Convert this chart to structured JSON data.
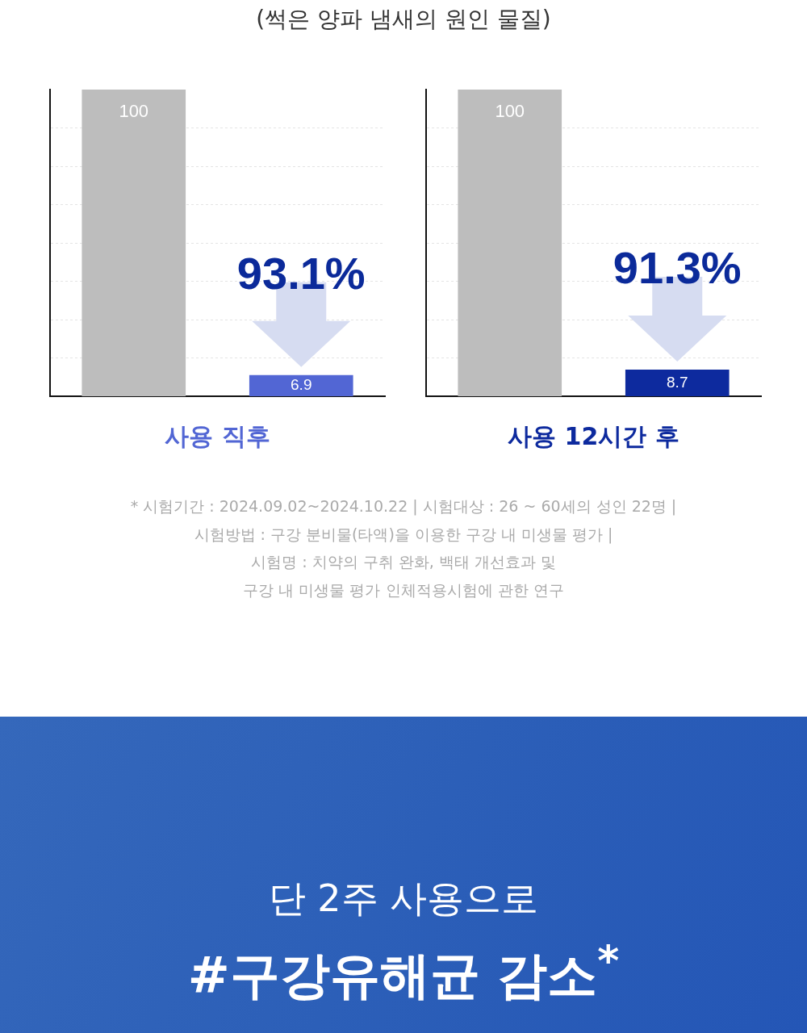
{
  "chart_data": [
    {
      "type": "bar",
      "title": "(썩은 양파 냄새의 원인 물질)",
      "xlabel": "사용 직후",
      "categories": [
        null,
        null
      ],
      "values": [
        100,
        6.9
      ],
      "colors": [
        "#bdbdbd",
        "#5266d4"
      ],
      "ylim": [
        0,
        100
      ],
      "yticks": [
        {
          "value": 12.5,
          "label": null
        },
        {
          "value": 25,
          "label": null
        },
        {
          "value": 37.5,
          "label": null
        },
        {
          "value": 50,
          "label": null
        },
        {
          "value": 62.5,
          "label": null
        },
        {
          "value": 75,
          "label": null
        },
        {
          "value": 87.5,
          "label": null
        }
      ],
      "grid": "y",
      "tick_labels": false,
      "data_labels": true,
      "annotations": [
        "93.1%"
      ]
    },
    {
      "type": "bar",
      "xlabel": "사용 12시간 후",
      "categories": [
        null,
        null
      ],
      "values": [
        100,
        8.7
      ],
      "colors": [
        "#bdbdbd",
        "#0d2a9e"
      ],
      "ylim": [
        0,
        100
      ],
      "yticks": [
        {
          "value": 12.5,
          "label": null
        },
        {
          "value": 25,
          "label": null
        },
        {
          "value": 37.5,
          "label": null
        },
        {
          "value": 50,
          "label": null
        },
        {
          "value": 62.5,
          "label": null
        },
        {
          "value": 75,
          "label": null
        },
        {
          "value": 87.5,
          "label": null
        }
      ],
      "grid": "y",
      "tick_labels": false,
      "data_labels": true,
      "annotations": [
        "91.3%"
      ]
    },
    {
      "type": "other",
      "annotations": [
        "* 시험기간 : 2024.09.02~2024.10.22 | 시험대상 : 26 ~ 60세의 성인 22명 |",
        "시험방법 : 구강 분비물(타액)을 이용한 구강 내 미생물 평가 |",
        "시험명 : 치약의 구취 완화, 백태 개선효과 및",
        "구강 내 미생물 평가 인체적용시험에 관한 연구"
      ]
    },
    {
      "type": "other",
      "title": "단 2주 사용으로",
      "subtitle": "#구강유해균 감소$^{*}$"
    }
  ]
}
